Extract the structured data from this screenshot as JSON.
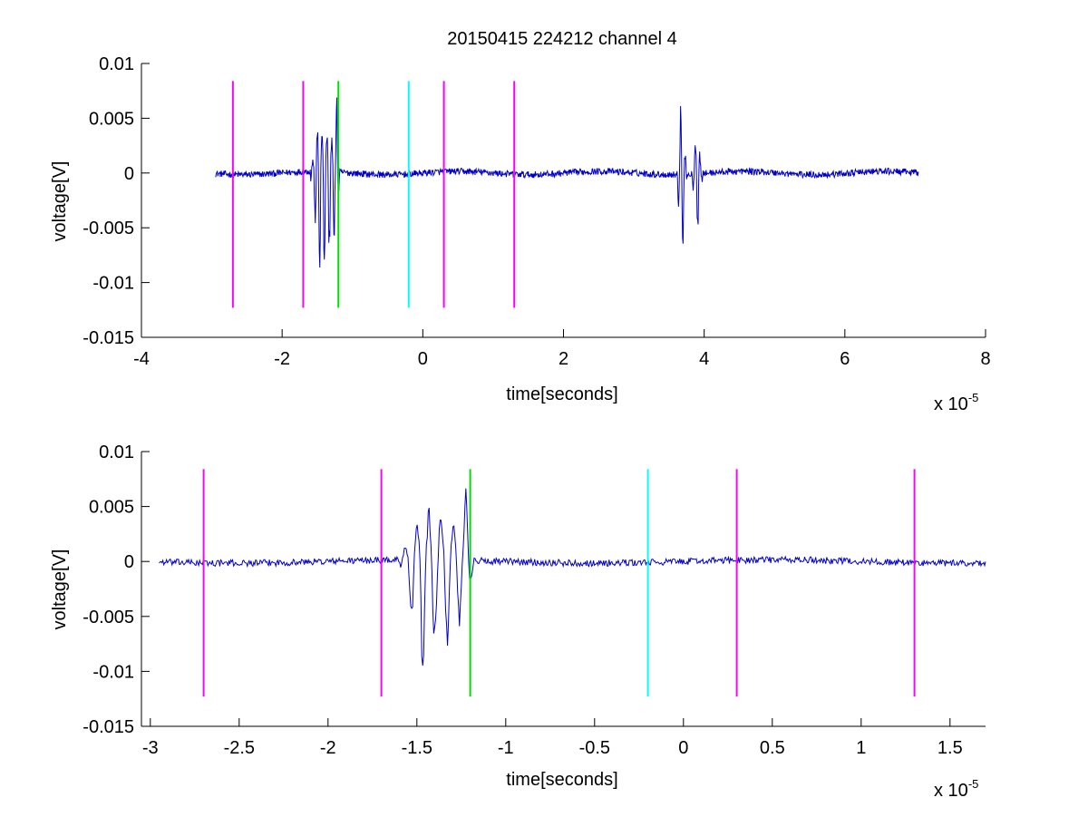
{
  "figure": {
    "title": "20150415 224212 channel 4"
  },
  "colors": {
    "signal": "#0000c8",
    "magenta": "#ff00ff",
    "green": "#00e000",
    "cyan": "#00ffff"
  },
  "chart_data": [
    {
      "type": "line",
      "xlabel": "time[seconds]",
      "ylabel": "voltage[V]",
      "x_multiplier": "x 10",
      "x_multiplier_exp": "-5",
      "xlim": [
        -4,
        8
      ],
      "ylim": [
        -0.015,
        0.01
      ],
      "xticks": [
        -4,
        -2,
        0,
        2,
        4,
        6,
        8
      ],
      "xtick_labels": [
        "-4",
        "-2",
        "0",
        "2",
        "4",
        "6",
        "8"
      ],
      "yticks": [
        -0.015,
        -0.01,
        -0.005,
        0,
        0.005,
        0.01
      ],
      "ytick_labels": [
        "-0.015",
        "-0.01",
        "-0.005",
        "0",
        "0.005",
        "0.01"
      ],
      "grid": false,
      "signal": {
        "x_range": [
          -2.95,
          7.05
        ],
        "noise_level": 0.0003,
        "bursts": [
          {
            "center": -1.45,
            "width": 0.12,
            "peak_pos": 0.0057,
            "peak_neg": -0.0112
          },
          {
            "center": -1.3,
            "width": 0.1,
            "peak_pos": 0.0045,
            "peak_neg": -0.0084
          },
          {
            "center": -1.22,
            "width": 0.03,
            "peak_pos": 0.0059,
            "peak_neg": -0.003
          },
          {
            "center": 3.68,
            "width": 0.06,
            "peak_pos": 0.0077,
            "peak_neg": -0.0088
          },
          {
            "center": 3.9,
            "width": 0.06,
            "peak_pos": 0.0053,
            "peak_neg": -0.0065
          }
        ]
      },
      "markers": [
        {
          "x": -2.7,
          "color": "magenta"
        },
        {
          "x": -1.7,
          "color": "magenta"
        },
        {
          "x": -1.2,
          "color": "green"
        },
        {
          "x": -0.2,
          "color": "cyan"
        },
        {
          "x": 0.3,
          "color": "magenta"
        },
        {
          "x": 1.3,
          "color": "magenta"
        }
      ],
      "marker_yrange": [
        -0.0123,
        0.0084
      ]
    },
    {
      "type": "line",
      "xlabel": "time[seconds]",
      "ylabel": "voltage[V]",
      "x_multiplier": "x 10",
      "x_multiplier_exp": "-5",
      "xlim": [
        -3.05,
        1.7
      ],
      "ylim": [
        -0.015,
        0.01
      ],
      "xticks": [
        -3,
        -2.5,
        -2,
        -1.5,
        -1,
        -0.5,
        0,
        0.5,
        1,
        1.5
      ],
      "xtick_labels": [
        "-3",
        "-2.5",
        "-2",
        "-1.5",
        "-1",
        "-0.5",
        "0",
        "0.5",
        "1",
        "1.5"
      ],
      "yticks": [
        -0.015,
        -0.01,
        -0.005,
        0,
        0.005,
        0.01
      ],
      "ytick_labels": [
        "-0.015",
        "-0.01",
        "-0.005",
        "0",
        "0.005",
        "0.01"
      ],
      "grid": false,
      "signal": {
        "x_range": [
          -2.95,
          1.7
        ],
        "noise_level": 0.0003,
        "bursts": [
          {
            "center": -1.45,
            "width": 0.12,
            "peak_pos": 0.0057,
            "peak_neg": -0.0112
          },
          {
            "center": -1.3,
            "width": 0.1,
            "peak_pos": 0.0045,
            "peak_neg": -0.0084
          },
          {
            "center": -1.22,
            "width": 0.03,
            "peak_pos": 0.0059,
            "peak_neg": -0.003
          }
        ]
      },
      "markers": [
        {
          "x": -2.7,
          "color": "magenta"
        },
        {
          "x": -1.7,
          "color": "magenta"
        },
        {
          "x": -1.2,
          "color": "green"
        },
        {
          "x": -0.2,
          "color": "cyan"
        },
        {
          "x": 0.3,
          "color": "magenta"
        },
        {
          "x": 1.3,
          "color": "magenta"
        }
      ],
      "marker_yrange": [
        -0.0123,
        0.0084
      ]
    }
  ]
}
